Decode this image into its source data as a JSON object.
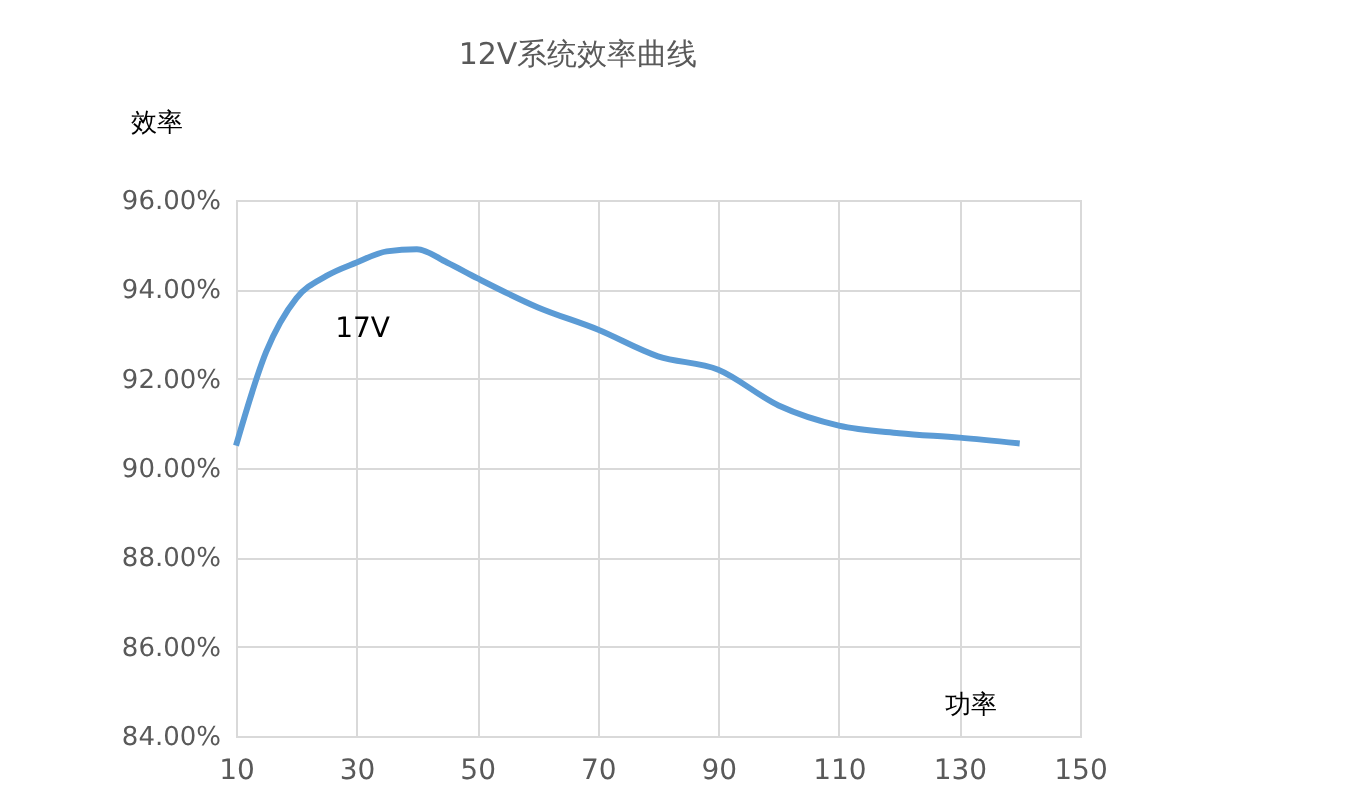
{
  "chart_data": {
    "type": "line",
    "title": "12V系统效率曲线",
    "ylabel": "效率",
    "xlabel": "功率",
    "x": [
      10,
      15,
      20,
      25,
      30,
      35,
      40,
      45,
      50,
      60,
      70,
      80,
      90,
      100,
      110,
      120,
      130,
      140
    ],
    "series": [
      {
        "color": "#5b9bd5",
        "values": [
          90.5,
          92.6,
          93.8,
          94.3,
          94.6,
          94.85,
          94.9,
          94.6,
          94.25,
          93.6,
          93.1,
          92.5,
          92.2,
          91.4,
          90.95,
          90.78,
          90.68,
          90.55
        ]
      }
    ],
    "annotations": [
      "17V"
    ],
    "xlim": [
      10,
      150
    ],
    "xticks": [
      10,
      30,
      50,
      70,
      90,
      110,
      130,
      150
    ],
    "ylim": [
      84,
      96
    ],
    "yticks": [
      {
        "value": 84,
        "label": "84.00%"
      },
      {
        "value": 86,
        "label": "86.00%"
      },
      {
        "value": 88,
        "label": "88.00%"
      },
      {
        "value": 90,
        "label": "90.00%"
      },
      {
        "value": 92,
        "label": "92.00%"
      },
      {
        "value": 94,
        "label": "94.00%"
      },
      {
        "value": 96,
        "label": "96.00%"
      }
    ],
    "grid": true,
    "marker": "none",
    "line_style": "solid"
  }
}
